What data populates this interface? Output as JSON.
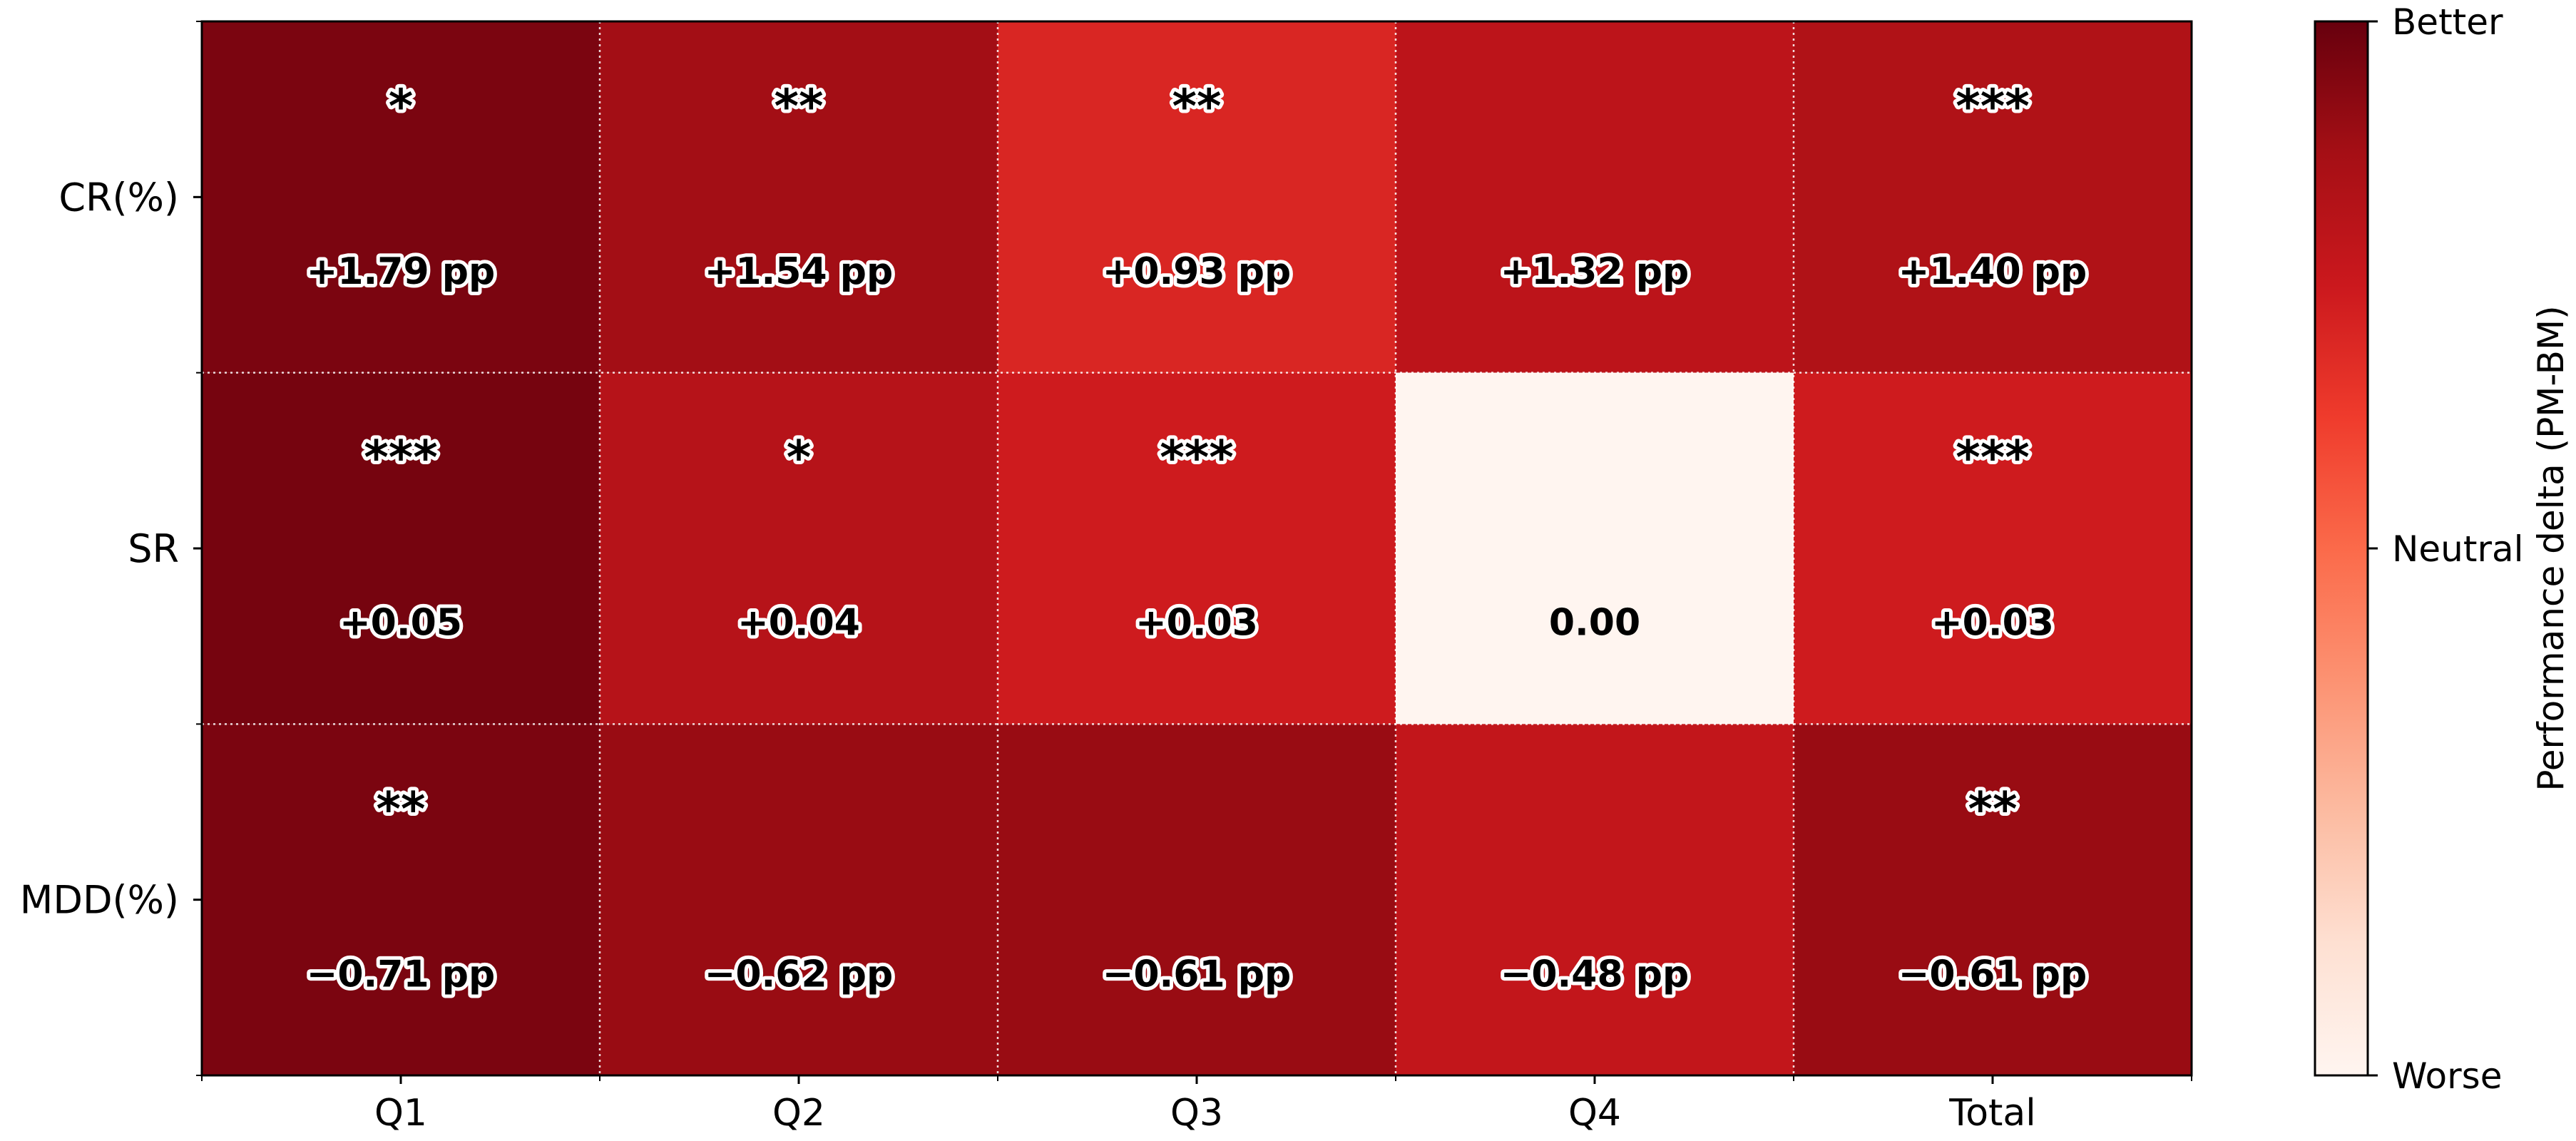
{
  "chart_data": {
    "type": "heatmap",
    "title": "",
    "xlabel": "",
    "ylabel": "",
    "categories": [
      "Q1",
      "Q2",
      "Q3",
      "Q4",
      "Total"
    ],
    "rows": [
      "CR(%)",
      "SR",
      "MDD(%)"
    ],
    "normalized_values": [
      [
        0.96,
        0.88,
        0.7,
        0.8,
        0.84
      ],
      [
        0.97,
        0.82,
        0.74,
        0.0,
        0.74
      ],
      [
        0.96,
        0.9,
        0.9,
        0.78,
        0.9
      ]
    ],
    "value_labels": [
      [
        "+1.79 pp",
        "+1.54 pp",
        "+0.93 pp",
        "+1.32 pp",
        "+1.40 pp"
      ],
      [
        "+0.05",
        "+0.04",
        "+0.03",
        "0.00",
        "+0.03"
      ],
      [
        "−0.71 pp",
        "−0.62 pp",
        "−0.61 pp",
        "−0.48 pp",
        "−0.61 pp"
      ]
    ],
    "significance": [
      [
        "*",
        "**",
        "**",
        "",
        "***"
      ],
      [
        "***",
        "*",
        "***",
        "",
        "***"
      ],
      [
        "**",
        "",
        "",
        "",
        "**"
      ]
    ],
    "colorbar": {
      "label": "Performance delta (PM-BM)",
      "ticks": [
        "Better",
        "Neutral",
        "Worse"
      ],
      "tick_levels": [
        1.0,
        0.5,
        0.0
      ],
      "colormap": "Reds"
    },
    "grid": true
  }
}
